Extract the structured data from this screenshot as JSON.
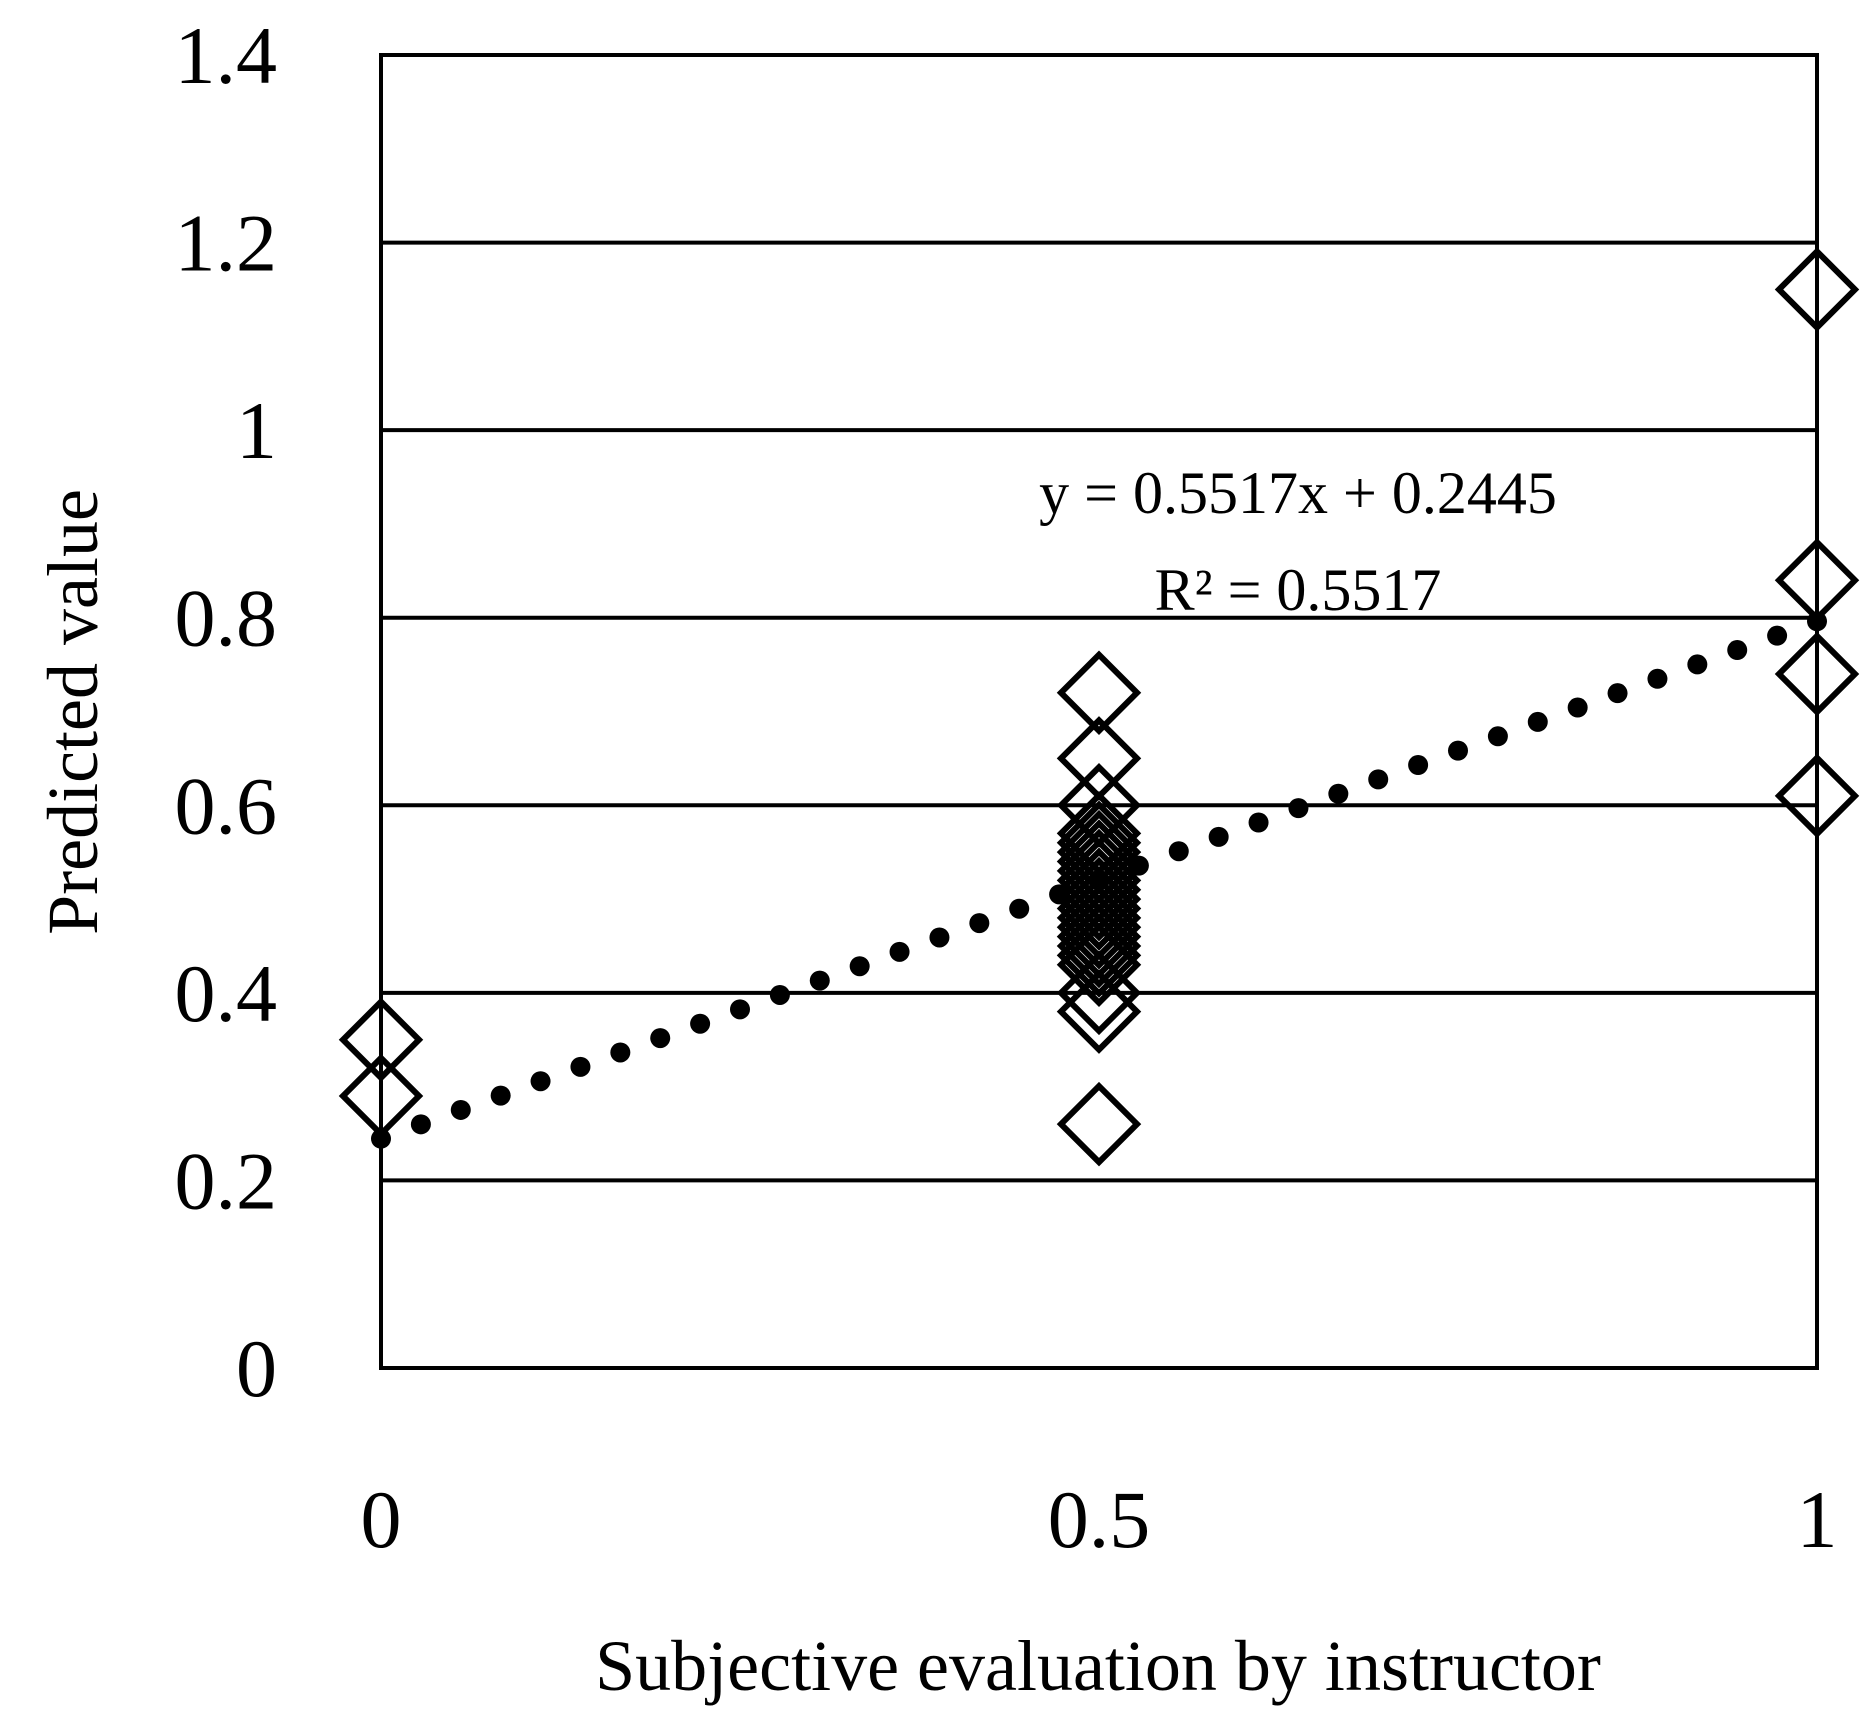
{
  "chart_data": {
    "type": "scatter",
    "xlabel": "Subjective evaluation by instructor",
    "ylabel": "Predicted value",
    "xlim": [
      0,
      1
    ],
    "ylim": [
      0,
      1.4
    ],
    "x_ticks": [
      "0",
      "0.5",
      "1"
    ],
    "y_ticks": [
      "0",
      "0.2",
      "0.4",
      "0.6",
      "0.8",
      "1",
      "1.2",
      "1.4"
    ],
    "grid": "horizontal",
    "marker": "diamond",
    "series": [
      {
        "points": [
          {
            "x": 0,
            "y": 0.35
          },
          {
            "x": 0,
            "y": 0.29
          },
          {
            "x": 0.5,
            "y": 0.72
          },
          {
            "x": 0.5,
            "y": 0.65
          },
          {
            "x": 0.5,
            "y": 0.6
          },
          {
            "x": 0.5,
            "y": 0.57
          },
          {
            "x": 0.5,
            "y": 0.56
          },
          {
            "x": 0.5,
            "y": 0.55
          },
          {
            "x": 0.5,
            "y": 0.54
          },
          {
            "x": 0.5,
            "y": 0.53
          },
          {
            "x": 0.5,
            "y": 0.52
          },
          {
            "x": 0.5,
            "y": 0.51
          },
          {
            "x": 0.5,
            "y": 0.5
          },
          {
            "x": 0.5,
            "y": 0.49
          },
          {
            "x": 0.5,
            "y": 0.48
          },
          {
            "x": 0.5,
            "y": 0.47
          },
          {
            "x": 0.5,
            "y": 0.46
          },
          {
            "x": 0.5,
            "y": 0.45
          },
          {
            "x": 0.5,
            "y": 0.44
          },
          {
            "x": 0.5,
            "y": 0.43
          },
          {
            "x": 0.5,
            "y": 0.4
          },
          {
            "x": 0.5,
            "y": 0.38
          },
          {
            "x": 0.5,
            "y": 0.26
          },
          {
            "x": 1,
            "y": 1.15
          },
          {
            "x": 1,
            "y": 0.84
          },
          {
            "x": 1,
            "y": 0.74
          },
          {
            "x": 1,
            "y": 0.61
          }
        ]
      }
    ],
    "trendline": {
      "style": "dotted",
      "slope": 0.5517,
      "intercept": 0.2445,
      "equation": "y = 0.5517x + 0.2445",
      "r_squared": "R² = 0.5517"
    }
  }
}
